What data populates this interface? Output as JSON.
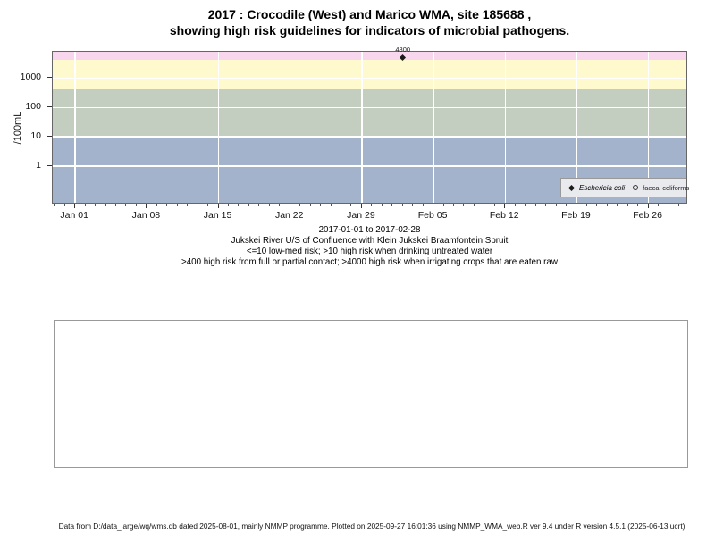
{
  "page": {
    "title_line1": "2017 : Crocodile (West) and Marico WMA, site 185688 ,",
    "title_line2": "showing high risk guidelines for indicators of microbial pathogens.",
    "footer": "Data from D:/data_large/wq/wms.db dated 2025-08-01, mainly NMMP programme. Plotted on 2025-09-27 16:01:36 using NMMP_WMA_web.R ver 9.4 under R version 4.5.1 (2025-06-13 ucrt)"
  },
  "caption": {
    "lines": [
      "2017-01-01 to 2017-02-28",
      "Jukskei River U/S of Confluence with Klein Jukskei Braamfontein Spruit",
      "<=10 low-med risk; >10 high risk when drinking untreated water",
      ">400 high risk from full or partial contact; >4000 high risk when irrigating crops that are eaten raw"
    ]
  },
  "chart_data": {
    "type": "scatter",
    "title": "2017 : Crocodile (West) and Marico WMA, site 185688 , showing high risk guidelines for indicators of microbial pathogens.",
    "xlabel": "",
    "ylabel": "/100mL",
    "y_scale": "log10",
    "x_start_date": "2017-01-01",
    "x_end_date": "2017-02-28",
    "xlim_days": [
      -2.2,
      59.7
    ],
    "ylim_log10": [
      -1.24,
      3.89
    ],
    "grid": "white major gridlines on",
    "legend_position": "inside bottom-right",
    "y_ticks": [
      {
        "log10": 0,
        "label": "1"
      },
      {
        "log10": 1,
        "label": "10"
      },
      {
        "log10": 2,
        "label": "100"
      },
      {
        "log10": 3,
        "label": "1000"
      }
    ],
    "x_ticks": [
      {
        "day": 0,
        "label": "Jan 01"
      },
      {
        "day": 7,
        "label": "Jan 08"
      },
      {
        "day": 14,
        "label": "Jan 15"
      },
      {
        "day": 21,
        "label": "Jan 22"
      },
      {
        "day": 28,
        "label": "Jan 29"
      },
      {
        "day": 35,
        "label": "Feb 05"
      },
      {
        "day": 42,
        "label": "Feb 12"
      },
      {
        "day": 49,
        "label": "Feb 19"
      },
      {
        "day": 56,
        "label": "Feb 26"
      }
    ],
    "x_minor_tick_step_days": 1,
    "bands": [
      {
        "meaning": "<=10 low-med risk",
        "from_log10": -1.24,
        "to_log10": 1,
        "color": "#a4b3cc"
      },
      {
        "meaning": ">10 high risk when drinking untreated water",
        "from_log10": 1,
        "to_log10": 2.602,
        "color": "#c4cec0"
      },
      {
        "meaning": ">400 high risk from full or partial contact",
        "from_log10": 2.602,
        "to_log10": 3.602,
        "color": "#fffacd"
      },
      {
        "meaning": ">4000 high risk when irrigating crops that are eaten raw",
        "from_log10": 3.602,
        "to_log10": 3.89,
        "color": "#f8d7ee"
      }
    ],
    "series": [
      {
        "name": "Eschericia coli",
        "symbol": "filled-diamond",
        "color": "#1a1a1a",
        "points": [
          {
            "date": "2017-02-02",
            "day": 32,
            "value": 4800,
            "label": "4800"
          }
        ]
      },
      {
        "name": "faecal coliforms",
        "symbol": "open-circle",
        "color": "#1a1a1a",
        "points": []
      }
    ]
  }
}
